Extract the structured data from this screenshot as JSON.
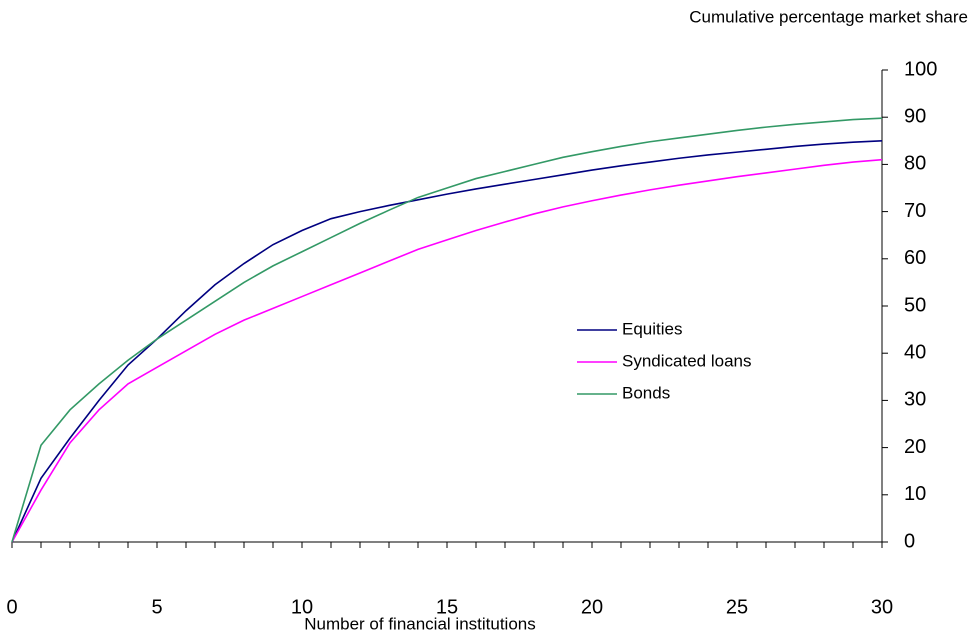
{
  "chart_data": {
    "type": "line",
    "y_axis_label": "Cumulative percentage market share",
    "x_axis_label": "Number of financial institutions",
    "x": [
      0,
      1,
      2,
      3,
      4,
      5,
      6,
      7,
      8,
      9,
      10,
      11,
      12,
      13,
      14,
      15,
      16,
      17,
      18,
      19,
      20,
      21,
      22,
      23,
      24,
      25,
      26,
      27,
      28,
      29,
      30
    ],
    "series": [
      {
        "name": "Equities",
        "color": "#000080",
        "values": [
          0,
          13.5,
          22,
          30,
          37.5,
          43,
          49,
          54.5,
          59,
          63,
          66,
          68.5,
          70,
          71.3,
          72.5,
          73.7,
          74.8,
          75.8,
          76.8,
          77.8,
          78.8,
          79.7,
          80.5,
          81.3,
          82,
          82.6,
          83.2,
          83.8,
          84.3,
          84.7,
          85
        ]
      },
      {
        "name": "Syndicated loans",
        "color": "#ff00ff",
        "values": [
          0,
          11,
          21,
          28,
          33.5,
          37,
          40.5,
          44,
          47,
          49.5,
          52,
          54.5,
          57,
          59.5,
          62,
          64,
          66,
          67.8,
          69.5,
          71,
          72.3,
          73.5,
          74.6,
          75.6,
          76.5,
          77.4,
          78.2,
          79,
          79.8,
          80.5,
          81
        ]
      },
      {
        "name": "Bonds",
        "color": "#339966",
        "values": [
          0,
          20.5,
          28,
          33.5,
          38.5,
          43,
          47,
          51,
          55,
          58.5,
          61.5,
          64.5,
          67.5,
          70.3,
          73,
          75,
          77,
          78.5,
          80,
          81.5,
          82.7,
          83.8,
          84.8,
          85.6,
          86.4,
          87.2,
          87.9,
          88.5,
          89,
          89.5,
          89.8
        ]
      }
    ],
    "xlim": [
      0,
      30
    ],
    "xticks": [
      0,
      5,
      10,
      15,
      20,
      25,
      30
    ],
    "ylim": [
      0,
      100
    ],
    "yticks": [
      0,
      10,
      20,
      30,
      40,
      50,
      60,
      70,
      80,
      90,
      100
    ],
    "y_axis_side": "right",
    "grid": false
  }
}
